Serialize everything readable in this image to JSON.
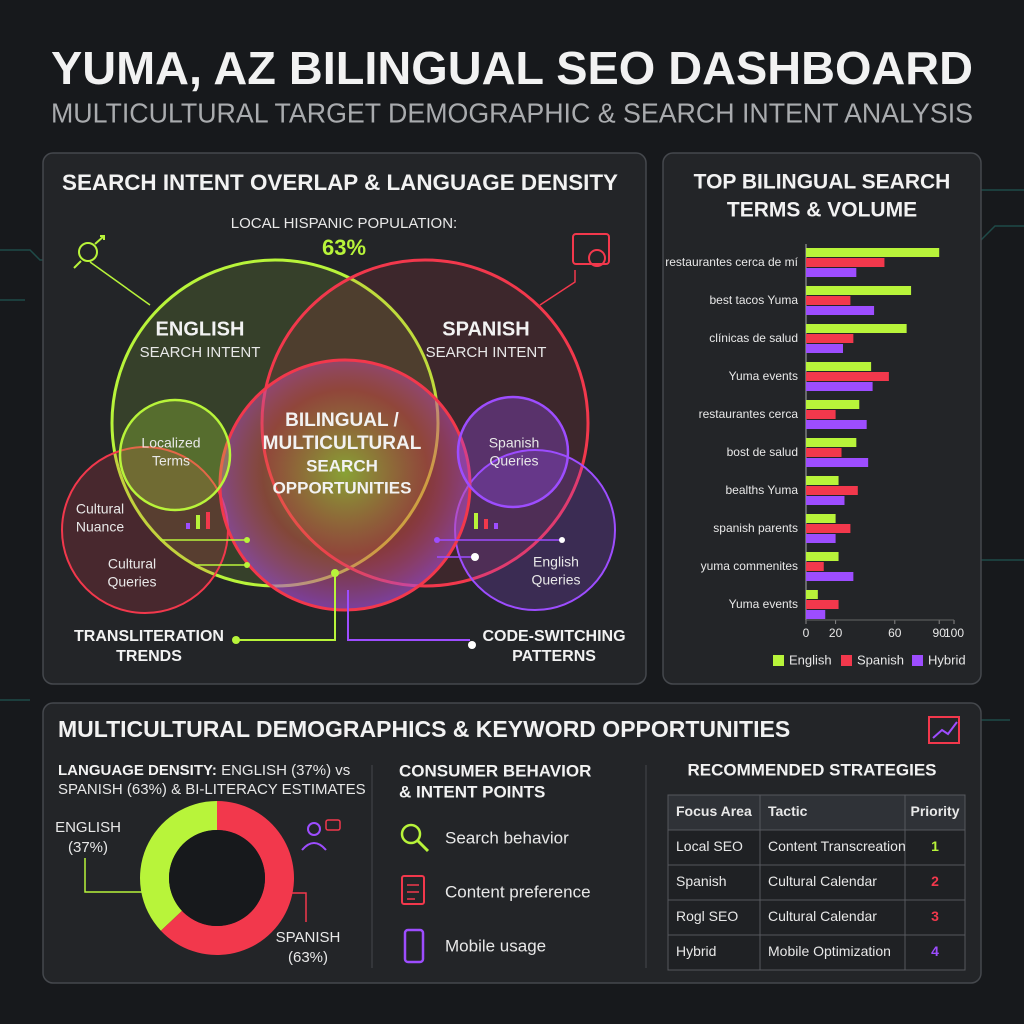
{
  "header": {
    "title": "YUMA, AZ BILINGUAL SEO DASHBOARD",
    "subtitle": "MULTICULTURAL TARGET DEMOGRAPHIC & SEARCH INTENT ANALYSIS"
  },
  "venn": {
    "title": "SEARCH INTENT OVERLAP & LANGUAGE DENSITY",
    "population_label": "LOCAL HISPANIC POPULATION:",
    "population_value": "63%",
    "english": [
      "ENGLISH",
      "SEARCH INTENT"
    ],
    "spanish": [
      "SPANISH",
      "SEARCH INTENT"
    ],
    "bilingual": [
      "BILINGUAL /",
      "MULTICULTURAL",
      "SEARCH",
      "OPPORTUNITIES"
    ],
    "localized": [
      "Localized",
      "Terms"
    ],
    "cultural_nuance": [
      "Cultural",
      "Nuance"
    ],
    "cultural_queries": [
      "Cultural",
      "Queries"
    ],
    "spanish_queries": [
      "Spanish",
      "Queries"
    ],
    "english_queries": [
      "English",
      "Queries"
    ],
    "transliteration": [
      "TRANSLITERATION",
      "TRENDS"
    ],
    "code_switching": [
      "CODE-SWITCHING",
      "PATTERNS"
    ]
  },
  "chart_data": [
    {
      "type": "bar",
      "orientation": "horizontal",
      "title": [
        "TOP BILINGUAL SEARCH",
        "TERMS & VOLUME"
      ],
      "categories": [
        "restaurantes cerca de mí",
        "best tacos Yuma",
        "clínicas de salud",
        "Yuma events",
        "restaurantes cerca",
        "bost de salud",
        "bealths Yuma",
        "spanish parents",
        "yuma commenites",
        "Yuma events"
      ],
      "series": [
        {
          "name": "English",
          "color": "#b8f43a",
          "values": [
            90,
            71,
            68,
            44,
            36,
            34,
            22,
            20,
            22,
            8
          ]
        },
        {
          "name": "Spanish",
          "color": "#f2384c",
          "values": [
            53,
            30,
            32,
            56,
            20,
            24,
            35,
            30,
            12,
            22
          ]
        },
        {
          "name": "Hybrid",
          "color": "#9d4dff",
          "values": [
            34,
            46,
            25,
            45,
            41,
            42,
            26,
            20,
            32,
            13
          ]
        }
      ],
      "xlim": [
        0,
        100
      ],
      "xticks": [
        0,
        20,
        60,
        90,
        100
      ],
      "legend": "bottom"
    },
    {
      "type": "pie",
      "donut": true,
      "categories": [
        "ENGLISH",
        "SPANISH"
      ],
      "values": [
        37,
        63
      ],
      "value_labels": [
        "(37%)",
        "(63%)"
      ],
      "colors": [
        "#b8f43a",
        "#f2384c"
      ]
    }
  ],
  "bottom": {
    "title": "MULTICULTURAL DEMOGRAPHICS & KEYWORD OPPORTUNITIES",
    "density_heading": "LANGUAGE DENSITY:",
    "density_text": [
      "ENGLISH (37%) vs",
      "SPANISH (63%) & BI-LITERACY ESTIMATES"
    ],
    "behavior_heading": [
      "CONSUMER BEHAVIOR",
      "& INTENT POINTS"
    ],
    "behavior_items": [
      "Search behavior",
      "Content preference",
      "Mobile usage"
    ],
    "strategies_heading": "RECOMMENDED STRATEGIES",
    "table": {
      "header": [
        "Focus Area",
        "Tactic",
        "Priority"
      ],
      "rows": [
        [
          "Local SEO",
          "Content Transcreation",
          "1"
        ],
        [
          "Spanish",
          "Cultural Calendar",
          "2"
        ],
        [
          "Rogl SEO",
          "Cultural Calendar",
          "3"
        ],
        [
          "Hybrid",
          "Mobile Optimization",
          "4"
        ]
      ]
    }
  }
}
